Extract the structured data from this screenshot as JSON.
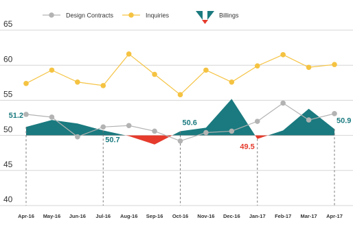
{
  "chart_data": {
    "type": "line-area",
    "categories": [
      "Apr-16",
      "May-16",
      "Jun-16",
      "Jul-16",
      "Aug-16",
      "Sep-16",
      "Oct-16",
      "Nov-16",
      "Dec-16",
      "Jan-17",
      "Feb-17",
      "Mar-17",
      "Apr-17"
    ],
    "series": [
      {
        "name": "Design Contracts",
        "color": "#b3b3b3",
        "kind": "line",
        "values": [
          53.0,
          52.6,
          49.8,
          51.2,
          51.4,
          50.6,
          49.2,
          50.4,
          50.6,
          52.0,
          54.6,
          52.2,
          53.1
        ]
      },
      {
        "name": "Inquiries",
        "color": "#f5c342",
        "kind": "line",
        "values": [
          57.4,
          59.3,
          57.6,
          57.1,
          61.6,
          58.7,
          55.8,
          59.3,
          57.6,
          59.9,
          61.5,
          59.7,
          60.1
        ]
      },
      {
        "name": "Billings",
        "color": "#1a7a7f",
        "negative_color": "#e53a2c",
        "kind": "area",
        "values": [
          51.2,
          52.2,
          51.7,
          50.7,
          49.9,
          48.7,
          50.6,
          51.1,
          55.2,
          49.5,
          50.7,
          53.8,
          50.9
        ],
        "value_labels": [
          "51.2",
          null,
          null,
          "50.7",
          null,
          null,
          "50.6",
          null,
          null,
          "49.5",
          null,
          null,
          "50.9"
        ]
      }
    ],
    "baseline": 50,
    "ylim": [
      40,
      65
    ],
    "yticks": [
      40,
      45,
      50,
      55,
      60,
      65
    ],
    "grid": true
  }
}
